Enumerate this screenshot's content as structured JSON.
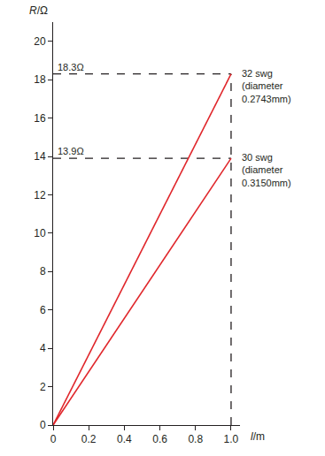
{
  "chart_data": {
    "type": "line",
    "x_label": "l/m",
    "y_label": "R/Ω",
    "series": [
      {
        "name": "32 swg\n(diameter\n0.2743mm)",
        "color": "#e0262b",
        "x": [
          0,
          1.0
        ],
        "values": [
          0,
          18.3
        ]
      },
      {
        "name": "30 swg\n(diameter\n0.3150mm)",
        "color": "#e0262b",
        "x": [
          0,
          1.0
        ],
        "values": [
          0,
          13.9
        ]
      }
    ],
    "reference_lines": [
      {
        "x": [
          0,
          1.0
        ],
        "y": 18.3,
        "line_style": "dashed"
      },
      {
        "x": [
          0,
          1.0
        ],
        "y": 13.9,
        "line_style": "dashed"
      },
      {
        "x": 1.0,
        "y": [
          0,
          18.3
        ],
        "line_style": "dashed"
      }
    ],
    "annotations": [
      {
        "text": "18.3Ω",
        "x": 0,
        "y": 18.3
      },
      {
        "text": "13.9Ω",
        "x": 0,
        "y": 13.9
      }
    ],
    "xlim": [
      0,
      1.05
    ],
    "ylim": [
      0,
      21
    ],
    "xticks": [
      0,
      0.2,
      0.4,
      0.6,
      0.8,
      {
        "value": 1,
        "label": "1.0"
      }
    ],
    "yticks": [
      0,
      2,
      4,
      6,
      8,
      10,
      12,
      14,
      16,
      18,
      20
    ],
    "grid": false
  }
}
